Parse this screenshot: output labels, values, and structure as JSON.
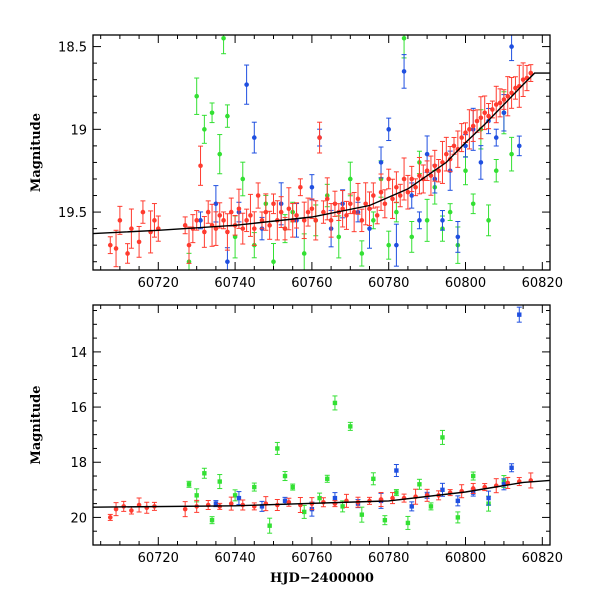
{
  "chart_data": [
    {
      "type": "scatter",
      "panel": "top",
      "xlabel": "",
      "ylabel": "Magnitude",
      "xlim": [
        60703,
        60822
      ],
      "ylim": [
        19.85,
        18.43
      ],
      "y_inverted": true,
      "xticks": [
        60720,
        60740,
        60760,
        60780,
        60800,
        60820
      ],
      "yticks": [
        18.5,
        19,
        19.5
      ],
      "ytick_labels": [
        "18.5",
        "19",
        "19.5"
      ],
      "model_curve": {
        "x": [
          60703,
          60720,
          60740,
          60760,
          60775,
          60785,
          60795,
          60800,
          60805,
          60810,
          60815,
          60818,
          60822
        ],
        "y": [
          19.63,
          19.61,
          19.58,
          19.53,
          19.46,
          19.36,
          19.2,
          19.08,
          18.97,
          18.85,
          18.73,
          18.66,
          18.66
        ]
      },
      "series": [
        {
          "color": "#ff3b2f",
          "x": [
            60707.5,
            60709,
            60710,
            60712,
            60713,
            60715,
            60716,
            60718,
            60719,
            60720,
            60727,
            60728,
            60729,
            60730,
            60731,
            60732,
            60733,
            60734,
            60735,
            60736,
            60737,
            60738,
            60739,
            60740,
            60741,
            60742,
            60743,
            60744,
            60745,
            60746,
            60747,
            60748,
            60749,
            60750,
            60751,
            60752,
            60753,
            60754,
            60755,
            60756,
            60757,
            60758,
            60759,
            60760,
            60761,
            60762,
            60763,
            60764,
            60765,
            60766,
            60767,
            60768,
            60769,
            60770,
            60771,
            60772,
            60773,
            60774,
            60775,
            60776,
            60777,
            60778,
            60779,
            60780,
            60781,
            60782,
            60783,
            60784,
            60785,
            60786,
            60787,
            60788,
            60789,
            60790,
            60791,
            60792,
            60793,
            60794,
            60795,
            60796,
            60797,
            60798,
            60799,
            60800,
            60801,
            60802,
            60803,
            60804,
            60805,
            60806,
            60807,
            60808,
            60809,
            60810,
            60811,
            60812,
            60813,
            60814,
            60815,
            60816,
            60817
          ],
          "y": [
            19.7,
            19.72,
            19.55,
            19.75,
            19.6,
            19.68,
            19.5,
            19.62,
            19.55,
            19.6,
            19.58,
            19.7,
            19.6,
            19.55,
            19.22,
            19.62,
            19.5,
            19.58,
            19.6,
            19.52,
            19.55,
            19.62,
            19.5,
            19.58,
            19.48,
            19.6,
            19.55,
            19.52,
            19.6,
            19.4,
            19.55,
            19.5,
            19.58,
            19.45,
            19.55,
            19.5,
            19.6,
            19.48,
            19.55,
            19.52,
            19.35,
            19.55,
            19.5,
            19.48,
            19.55,
            19.05,
            19.5,
            19.42,
            19.55,
            19.45,
            19.5,
            19.48,
            19.52,
            19.45,
            19.5,
            19.42,
            19.55,
            19.45,
            19.48,
            19.4,
            19.52,
            19.38,
            19.45,
            19.3,
            19.42,
            19.35,
            19.4,
            19.3,
            19.38,
            19.3,
            19.35,
            19.28,
            19.3,
            19.25,
            19.28,
            19.22,
            19.25,
            19.2,
            19.15,
            19.18,
            19.1,
            19.12,
            19.05,
            19.02,
            19.0,
            18.98,
            18.95,
            18.93,
            18.9,
            18.92,
            18.88,
            18.85,
            18.84,
            18.82,
            18.8,
            18.78,
            18.75,
            18.74,
            18.7,
            18.69,
            18.66
          ]
        },
        {
          "color": "#1f4fe0",
          "x": [
            60731,
            60735,
            60738,
            60741,
            60743,
            60745,
            60747,
            60752,
            60756,
            60760,
            60762,
            60765,
            60768,
            60772,
            60775,
            60778,
            60780,
            60782,
            60784,
            60786,
            60788,
            60790,
            60792,
            60794,
            60796,
            60798,
            60800,
            60802,
            60804,
            60806,
            60808,
            60810,
            60812,
            60814
          ],
          "y": [
            19.55,
            19.45,
            19.8,
            19.5,
            18.73,
            19.05,
            19.6,
            19.45,
            19.55,
            19.35,
            19.05,
            19.6,
            19.45,
            19.5,
            19.6,
            19.2,
            19.0,
            19.7,
            18.65,
            19.4,
            19.55,
            19.15,
            19.3,
            19.55,
            19.25,
            19.65,
            19.1,
            19.0,
            19.2,
            18.95,
            19.05,
            18.9,
            18.5,
            19.1
          ]
        },
        {
          "color": "#33e033",
          "x": [
            60728,
            60730,
            60732,
            60734,
            60736,
            60737,
            60738,
            60740,
            60742,
            60745,
            60748,
            60750,
            60753,
            60755,
            60758,
            60761,
            60764,
            60767,
            60770,
            60773,
            60776,
            60778,
            60780,
            60782,
            60784,
            60786,
            60788,
            60790,
            60792,
            60794,
            60796,
            60798,
            60800,
            60802,
            60804,
            60806,
            60808,
            60810,
            60812
          ],
          "y": [
            19.8,
            18.8,
            19.0,
            18.9,
            19.15,
            18.45,
            18.92,
            19.65,
            19.3,
            19.7,
            19.45,
            19.8,
            19.6,
            19.5,
            19.75,
            19.55,
            19.4,
            19.65,
            19.3,
            19.75,
            19.55,
            19.3,
            19.7,
            19.5,
            18.45,
            19.65,
            19.2,
            19.55,
            19.35,
            19.6,
            19.5,
            19.7,
            19.25,
            19.45,
            19.0,
            19.55,
            19.25,
            18.9,
            19.15
          ]
        }
      ]
    },
    {
      "type": "scatter",
      "panel": "bottom",
      "xlabel": "HJD−2400000",
      "ylabel": "Magnitude",
      "xlim": [
        60703,
        60822
      ],
      "ylim": [
        21.0,
        12.3
      ],
      "y_inverted": true,
      "xticks": [
        60720,
        60740,
        60760,
        60780,
        60800,
        60820
      ],
      "yticks": [
        14,
        16,
        18,
        20
      ],
      "ytick_labels": [
        "14",
        "16",
        "18",
        "20"
      ],
      "model_curve": {
        "x": [
          60703,
          60740,
          60780,
          60800,
          60815,
          60822
        ],
        "y": [
          19.63,
          19.58,
          19.4,
          19.08,
          18.73,
          18.66
        ]
      },
      "series": [
        {
          "color": "#ff3b2f",
          "x": [
            60707.5,
            60709,
            60711,
            60713,
            60715,
            60717,
            60719,
            60727,
            60730,
            60733,
            60736,
            60739,
            60742,
            60745,
            60748,
            60751,
            60754,
            60757,
            60760,
            60763,
            60766,
            60769,
            60772,
            60775,
            60778,
            60781,
            60784,
            60787,
            60790,
            60793,
            60796,
            60799,
            60802,
            60805,
            60808,
            60811,
            60814,
            60817
          ],
          "y": [
            20.0,
            19.7,
            19.6,
            19.75,
            19.55,
            19.65,
            19.6,
            19.7,
            19.6,
            19.55,
            19.6,
            19.5,
            19.55,
            19.6,
            19.5,
            19.55,
            19.45,
            19.55,
            19.5,
            19.45,
            19.5,
            19.4,
            19.45,
            19.4,
            19.35,
            19.3,
            19.3,
            19.25,
            19.2,
            19.2,
            19.1,
            19.05,
            18.95,
            18.9,
            18.85,
            18.75,
            18.7,
            18.66
          ]
        },
        {
          "color": "#1f4fe0",
          "x": [
            60735,
            60741,
            60747,
            60753,
            60760,
            60766,
            60772,
            60778,
            60782,
            60786,
            60790,
            60794,
            60798,
            60802,
            60806,
            60810,
            60812,
            60814
          ],
          "y": [
            19.5,
            19.3,
            19.6,
            19.4,
            19.7,
            19.3,
            19.5,
            19.4,
            18.3,
            19.6,
            19.2,
            19.0,
            19.4,
            19.1,
            19.3,
            18.8,
            18.2,
            12.65
          ]
        },
        {
          "color": "#33e033",
          "x": [
            60728,
            60730,
            60732,
            60734,
            60736,
            60740,
            60745,
            60749,
            60751,
            60753,
            60755,
            60758,
            60762,
            60764,
            60766,
            60768,
            60770,
            60773,
            60776,
            60779,
            60782,
            60785,
            60788,
            60791,
            60794,
            60798,
            60802,
            60806,
            60810
          ],
          "y": [
            18.8,
            19.2,
            18.4,
            20.1,
            18.7,
            19.2,
            18.9,
            20.3,
            17.5,
            18.5,
            18.9,
            19.8,
            19.3,
            18.6,
            15.85,
            19.6,
            16.7,
            19.9,
            18.6,
            20.1,
            19.1,
            20.2,
            18.8,
            19.6,
            17.1,
            20.0,
            18.5,
            19.5,
            18.7
          ]
        }
      ]
    }
  ]
}
